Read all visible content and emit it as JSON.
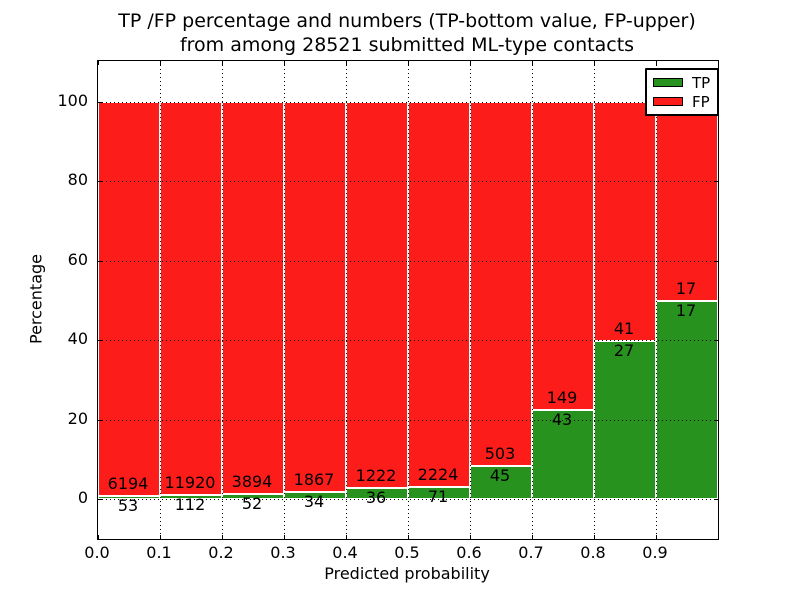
{
  "chart_data": {
    "type": "bar",
    "variant": "stacked-percentage",
    "title": "TP /FP percentage and numbers (TP-bottom value, FP-upper)\nfrom among 28521 submitted ML-type contacts",
    "title_line1": "TP /FP percentage and numbers (TP-bottom value, FP-upper)",
    "title_line2": "from among 28521 submitted ML-type contacts",
    "xlabel": "Predicted probability",
    "ylabel": "Percentage",
    "total_contacts": 28521,
    "bin_width": 0.1,
    "xlim": [
      0.0,
      1.0
    ],
    "ylim": [
      -10,
      110
    ],
    "grid": "dotted black, horizontal at 0/20/40/60/80/100 and vertical at each 0.1, drawn over bars",
    "x_tick_labels": [
      "0.0",
      "0.1",
      "0.2",
      "0.3",
      "0.4",
      "0.5",
      "0.6",
      "0.7",
      "0.8",
      "0.9"
    ],
    "y_tick_values": [
      0,
      20,
      40,
      60,
      80,
      100
    ],
    "y_tick_labels": [
      "0",
      "20",
      "40",
      "60",
      "80",
      "100"
    ],
    "bins": [
      {
        "range": "0.0-0.1",
        "tp": 53,
        "fp": 6194,
        "tp_percent": 0.85
      },
      {
        "range": "0.1-0.2",
        "tp": 112,
        "fp": 11920,
        "tp_percent": 0.93
      },
      {
        "range": "0.2-0.3",
        "tp": 52,
        "fp": 3894,
        "tp_percent": 1.32
      },
      {
        "range": "0.3-0.4",
        "tp": 34,
        "fp": 1867,
        "tp_percent": 1.79
      },
      {
        "range": "0.4-0.5",
        "tp": 36,
        "fp": 1222,
        "tp_percent": 2.86
      },
      {
        "range": "0.5-0.6",
        "tp": 71,
        "fp": 2224,
        "tp_percent": 3.09
      },
      {
        "range": "0.6-0.7",
        "tp": 45,
        "fp": 503,
        "tp_percent": 8.21
      },
      {
        "range": "0.7-0.8",
        "tp": 43,
        "fp": 149,
        "tp_percent": 22.4
      },
      {
        "range": "0.8-0.9",
        "tp": 27,
        "fp": 41,
        "tp_percent": 39.71
      },
      {
        "range": "0.9-1.0",
        "tp": 17,
        "fp": 17,
        "tp_percent": 50.0
      }
    ],
    "series": [
      {
        "name": "TP",
        "counts": [
          53,
          112,
          52,
          34,
          36,
          71,
          45,
          43,
          27,
          17
        ]
      },
      {
        "name": "FP",
        "counts": [
          6194,
          11920,
          3894,
          1867,
          1222,
          2224,
          503,
          149,
          41,
          17
        ]
      }
    ],
    "legend": {
      "position": "upper right",
      "entries": [
        {
          "label": "TP",
          "color": "#28921e"
        },
        {
          "label": "FP",
          "color": "#fc1d1b"
        }
      ]
    },
    "colors": {
      "tp": "#28921e",
      "fp": "#fc1d1b",
      "bar_edge": "#ffffff",
      "grid": "#000000",
      "axes": "#000000",
      "background": "#ffffff"
    }
  }
}
